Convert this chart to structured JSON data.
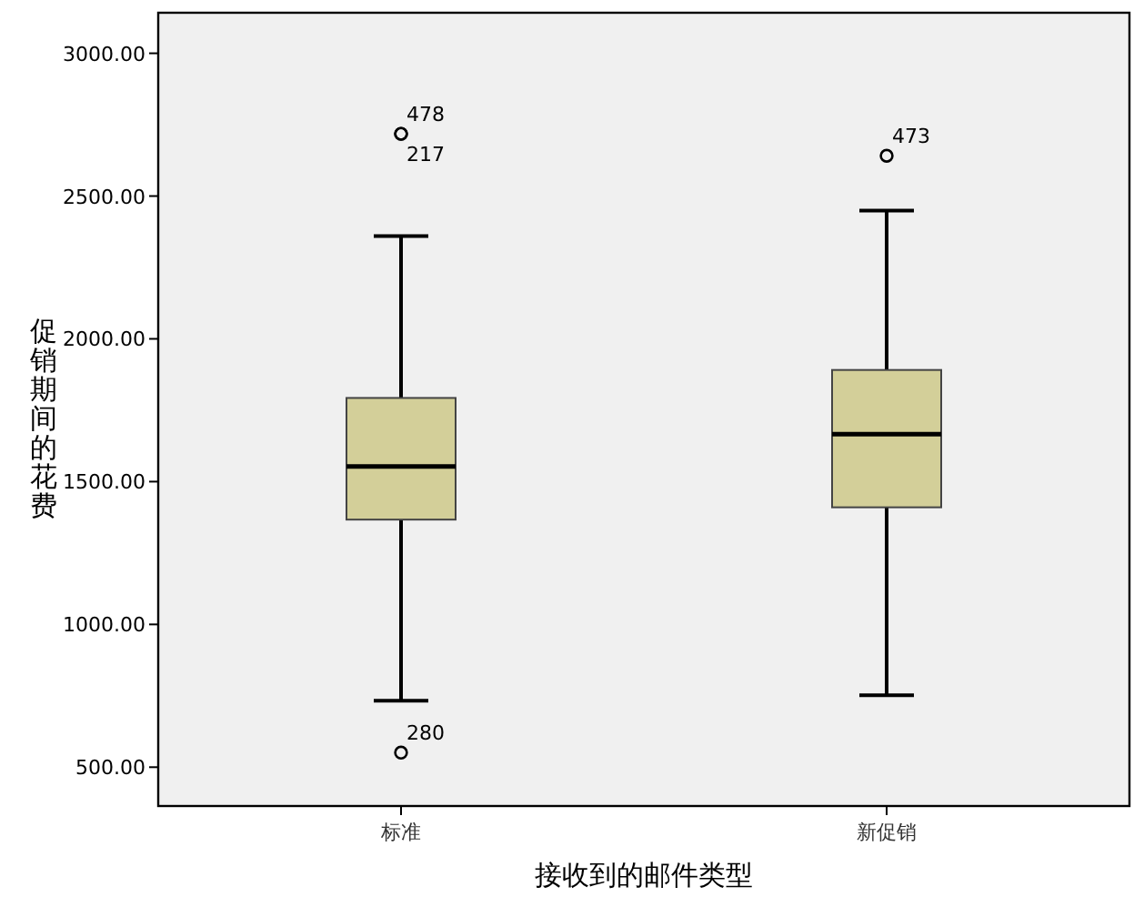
{
  "chart_data": {
    "type": "box",
    "xlabel": "接收到的邮件类型",
    "ylabel": "促销期间的花费",
    "categories": [
      "标准",
      "新促销"
    ],
    "boxes": [
      {
        "low": 733,
        "q1": 1367,
        "median": 1553,
        "q3": 1793,
        "high": 2360,
        "outliers": [
          2718,
          2718,
          551
        ]
      },
      {
        "low": 752,
        "q1": 1410,
        "median": 1666,
        "q3": 1891,
        "high": 2449,
        "outliers": [
          2641
        ]
      }
    ],
    "color": "#d3cf99",
    "ylim": [
      364,
      3142
    ],
    "yticks": [
      {
        "value": 500,
        "label": "500.00"
      },
      {
        "value": 1000,
        "label": "1000.00"
      },
      {
        "value": 1500,
        "label": "1500.00"
      },
      {
        "value": 2000,
        "label": "2000.00"
      },
      {
        "value": 2500,
        "label": "2500.00"
      },
      {
        "value": 3000,
        "label": "3000.00"
      }
    ],
    "grid": false,
    "annotations": [
      "478",
      "217",
      "280",
      "473"
    ]
  }
}
